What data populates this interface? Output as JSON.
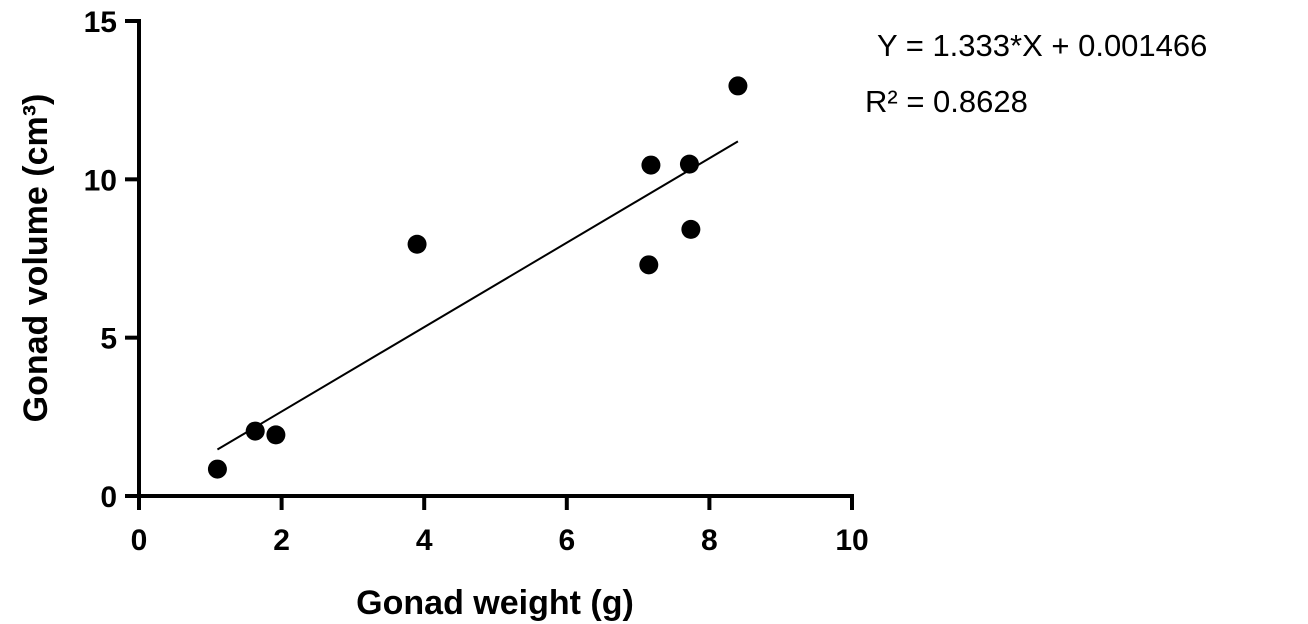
{
  "chart_data": {
    "type": "scatter",
    "xlabel": "Gonad weight (g)",
    "ylabel": "Gonad volume (cm³)",
    "xlim": [
      0,
      10
    ],
    "ylim": [
      0,
      15
    ],
    "x_ticks": [
      0,
      2,
      4,
      6,
      8,
      10
    ],
    "y_ticks": [
      0,
      5,
      10,
      15
    ],
    "x_tick_labels": [
      "0",
      "2",
      "4",
      "6",
      "8",
      "10"
    ],
    "y_tick_labels": [
      "0",
      "5",
      "10",
      "15"
    ],
    "grid": false,
    "series": [
      {
        "points": [
          {
            "x": 1.1,
            "y": 0.85
          },
          {
            "x": 1.63,
            "y": 2.05
          },
          {
            "x": 1.92,
            "y": 1.93
          },
          {
            "x": 3.9,
            "y": 7.95
          },
          {
            "x": 7.15,
            "y": 7.3
          },
          {
            "x": 7.18,
            "y": 10.45
          },
          {
            "x": 7.72,
            "y": 10.48
          },
          {
            "x": 7.74,
            "y": 8.42
          },
          {
            "x": 8.4,
            "y": 12.95
          }
        ]
      }
    ],
    "regression": {
      "slope": 1.333,
      "intercept": 0.001466,
      "x_range": [
        1.1,
        8.4
      ]
    },
    "annotations": {
      "equation": "Y = 1.333*X + 0.001466",
      "r_squared": "R² = 0.8628"
    }
  }
}
